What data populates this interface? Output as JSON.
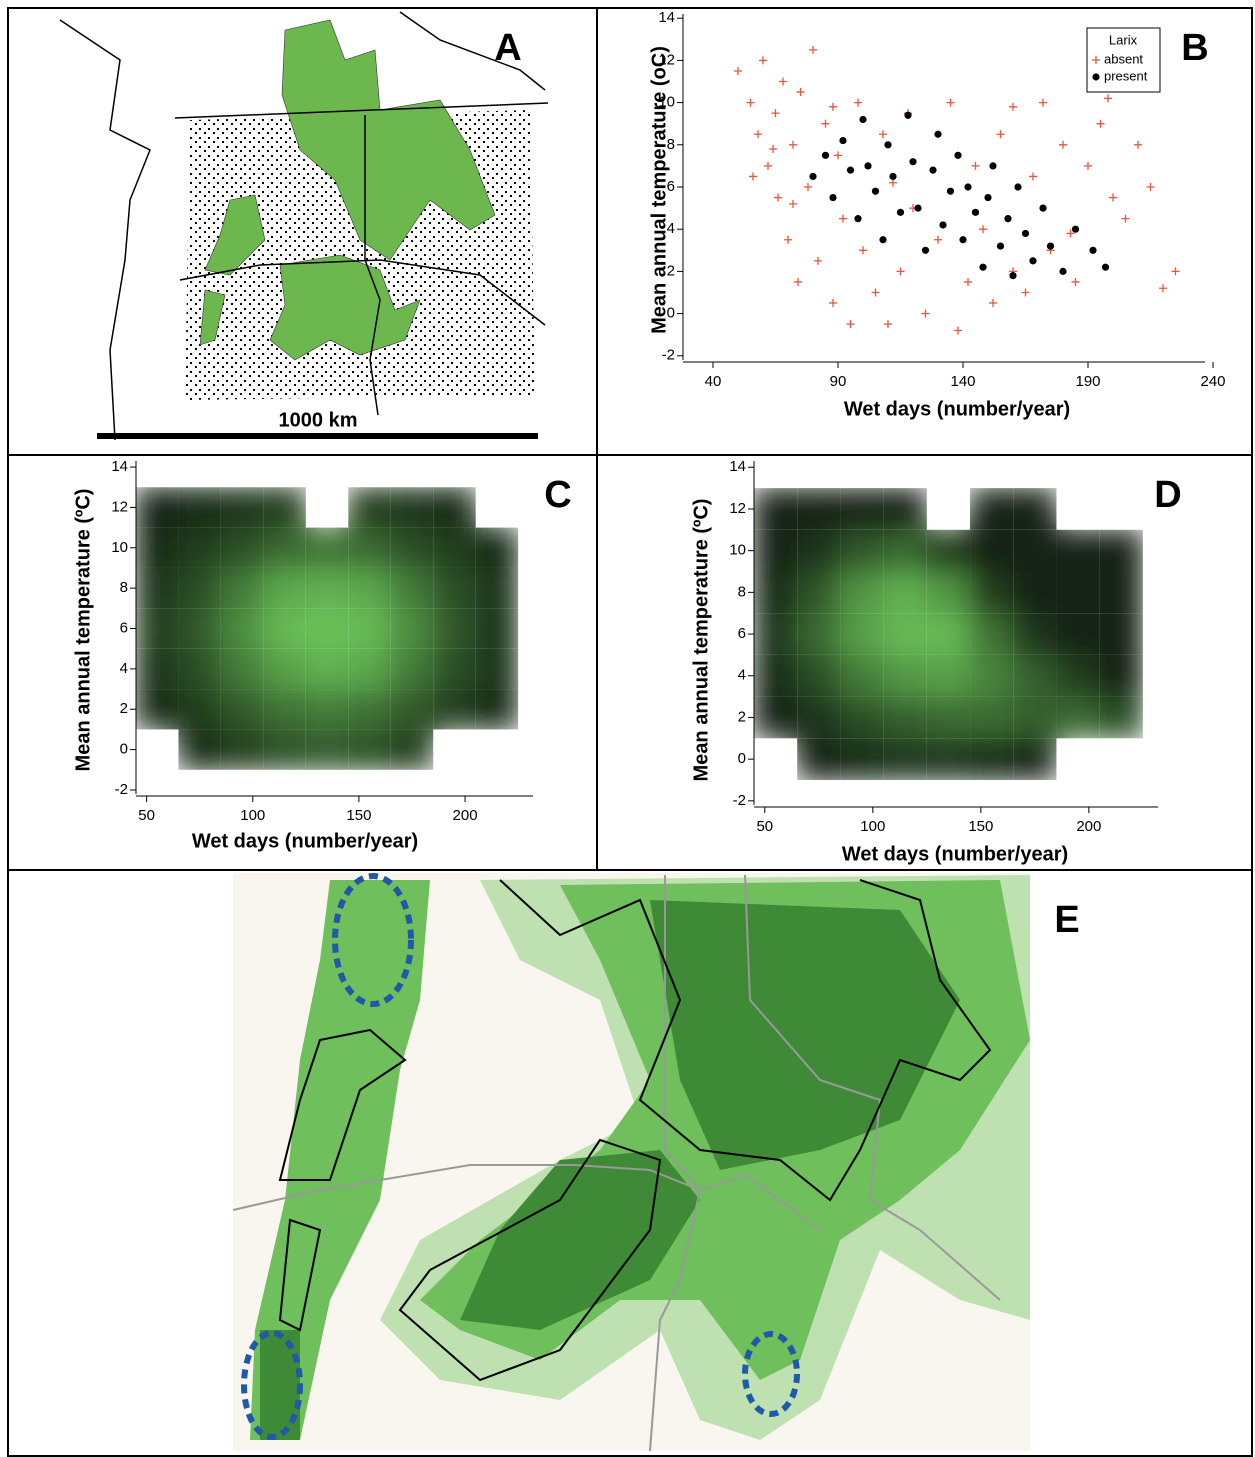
{
  "maps": [
    {
      "label": "A",
      "scale_label": "1000 km"
    },
    {
      "label": "E"
    }
  ],
  "chart_data": [
    {
      "type": "scatter",
      "panel_label": "B",
      "xlabel": "Wet days (number/year)",
      "ylabel": "Mean annual temperature (oC)",
      "xlim": [
        28,
        240
      ],
      "xticks": [
        40,
        90,
        140,
        190,
        240
      ],
      "ylim": [
        -2.2,
        14.2
      ],
      "yticks": [
        -2,
        0,
        2,
        4,
        6,
        8,
        10,
        12,
        14
      ],
      "legend_title": "Larix",
      "legend": "top-right",
      "series": [
        {
          "name": "absent",
          "color": "#e8553a",
          "marker": "plus",
          "x": [
            50,
            55,
            58,
            60,
            62,
            65,
            66,
            68,
            70,
            72,
            74,
            75,
            78,
            80,
            82,
            85,
            88,
            90,
            92,
            95,
            98,
            100,
            105,
            108,
            110,
            115,
            118,
            120,
            125,
            130,
            135,
            138,
            142,
            148,
            152,
            155,
            160,
            165,
            168,
            172,
            175,
            180,
            185,
            190,
            195,
            200,
            205,
            210,
            215,
            220,
            225,
            198,
            183,
            160,
            72,
            64,
            88,
            56,
            112,
            145
          ],
          "values": [
            11.5,
            10,
            8.5,
            12,
            7,
            9.5,
            5.5,
            11,
            3.5,
            8,
            1.5,
            10.5,
            6,
            12.5,
            2.5,
            9,
            0.5,
            7.5,
            4.5,
            -0.5,
            10,
            3,
            1,
            8.5,
            -0.5,
            2,
            9.5,
            5,
            0,
            3.5,
            10,
            -0.8,
            1.5,
            4,
            0.5,
            8.5,
            2,
            1,
            6.5,
            10,
            3,
            8,
            1.5,
            7,
            9,
            5.5,
            4.5,
            8,
            6,
            1.2,
            2,
            10.2,
            3.8,
            9.8,
            5.2,
            7.8,
            9.8,
            6.5,
            6.2,
            7
          ]
        },
        {
          "name": "present",
          "color": "#000000",
          "marker": "circle",
          "x": [
            80,
            85,
            88,
            92,
            95,
            98,
            100,
            102,
            105,
            108,
            110,
            112,
            115,
            118,
            120,
            122,
            125,
            128,
            130,
            132,
            135,
            138,
            140,
            142,
            145,
            148,
            150,
            152,
            155,
            158,
            160,
            162,
            165,
            168,
            172,
            175,
            180,
            185,
            192,
            197
          ],
          "values": [
            6.5,
            7.5,
            5.5,
            8.2,
            6.8,
            4.5,
            9.2,
            7,
            5.8,
            3.5,
            8,
            6.5,
            4.8,
            9.4,
            7.2,
            5,
            3,
            6.8,
            8.5,
            4.2,
            5.8,
            7.5,
            3.5,
            6,
            4.8,
            2.2,
            5.5,
            7,
            3.2,
            4.5,
            1.8,
            6,
            3.8,
            2.5,
            5,
            3.2,
            2,
            4,
            3,
            2.2
          ]
        }
      ]
    },
    {
      "type": "heatmap",
      "panel_label": "C",
      "xlabel": "Wet days (number/year)",
      "ylabel": "Mean annual temperature (ºC)",
      "xlim": [
        45,
        232
      ],
      "xticks": [
        50,
        100,
        150,
        200
      ],
      "ylim": [
        -2.2,
        14.3
      ],
      "yticks": [
        -2,
        0,
        2,
        4,
        6,
        8,
        10,
        12,
        14
      ],
      "x": [
        55,
        75,
        95,
        115,
        135,
        155,
        175,
        195,
        215
      ],
      "y": [
        0,
        2,
        4,
        6,
        8,
        10,
        12
      ],
      "z": [
        [
          null,
          0.1,
          0.2,
          0.3,
          0.35,
          0.3,
          0.2,
          null,
          null
        ],
        [
          0.1,
          0.2,
          0.35,
          0.5,
          0.55,
          0.5,
          0.35,
          0.2,
          0.1
        ],
        [
          0.15,
          0.3,
          0.55,
          0.75,
          0.85,
          0.8,
          0.55,
          0.3,
          0.15
        ],
        [
          0.2,
          0.35,
          0.65,
          0.9,
          0.95,
          0.9,
          0.65,
          0.35,
          0.15
        ],
        [
          0.15,
          0.3,
          0.55,
          0.8,
          0.85,
          0.8,
          0.55,
          0.3,
          0.15
        ],
        [
          0.1,
          0.2,
          0.3,
          0.45,
          0.5,
          0.45,
          0.3,
          0.2,
          0.1
        ],
        [
          0.05,
          0.1,
          0.15,
          0.2,
          null,
          0.2,
          0.15,
          0.1,
          null
        ]
      ]
    },
    {
      "type": "heatmap",
      "panel_label": "D",
      "xlabel": "Wet days (number/year)",
      "ylabel": "Mean annual temperature (ºC)",
      "xlim": [
        45,
        232
      ],
      "xticks": [
        50,
        100,
        150,
        200
      ],
      "ylim": [
        -2.2,
        14.3
      ],
      "yticks": [
        -2,
        0,
        2,
        4,
        6,
        8,
        10,
        12,
        14
      ],
      "x": [
        55,
        75,
        95,
        115,
        135,
        155,
        175,
        195,
        215
      ],
      "y": [
        0,
        2,
        4,
        6,
        8,
        10,
        12
      ],
      "z": [
        [
          null,
          0.05,
          0.1,
          0.15,
          0.15,
          0.1,
          0.05,
          null,
          null
        ],
        [
          0.05,
          0.15,
          0.3,
          0.4,
          0.45,
          0.45,
          0.4,
          0.45,
          0.3
        ],
        [
          0.1,
          0.3,
          0.55,
          0.7,
          0.75,
          0.6,
          0.4,
          0.2,
          0.05
        ],
        [
          0.15,
          0.45,
          0.75,
          0.9,
          0.9,
          0.5,
          0.15,
          0.05,
          0.05
        ],
        [
          0.1,
          0.35,
          0.7,
          0.85,
          0.7,
          0.2,
          0.05,
          0.05,
          0.05
        ],
        [
          0.05,
          0.15,
          0.35,
          0.45,
          0.2,
          0.05,
          0.05,
          0.05,
          0.05
        ],
        [
          0.05,
          0.05,
          0.05,
          0.05,
          null,
          0.05,
          0.05,
          null,
          null
        ]
      ]
    }
  ]
}
